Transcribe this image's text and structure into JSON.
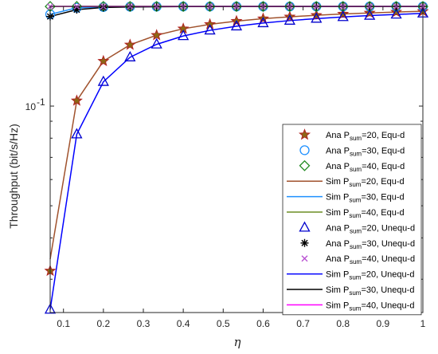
{
  "chart_data": {
    "type": "line",
    "xlabel": "η",
    "ylabel": "Throughput (bit/s/Hz)",
    "xlim": [
      0.0667,
      1.0
    ],
    "ylim": [
      0.0238,
      0.2
    ],
    "yscale": "log",
    "xticks": [
      "0.1",
      "0.2",
      "0.3",
      "0.4",
      "0.5",
      "0.6",
      "0.7",
      "0.8",
      "0.9",
      "1"
    ],
    "xtick_values": [
      0.1,
      0.2,
      0.3,
      0.4,
      0.5,
      0.6,
      0.7,
      0.8,
      0.9,
      1.0
    ],
    "ytick_label": {
      "base": "10",
      "exp": "-1",
      "value": 0.1
    },
    "x": [
      0.0667,
      0.1333,
      0.2,
      0.2667,
      0.3333,
      0.4,
      0.4667,
      0.5333,
      0.6,
      0.6667,
      0.7333,
      0.8,
      0.8667,
      0.9333,
      1.0
    ],
    "legend_position": "bottom-right",
    "series": [
      {
        "name": "Ana P_sum=20, Equ-d",
        "kind": "marker",
        "marker": "star",
        "color": "#B22222",
        "fill": "#8B6914",
        "values": [
          0.0318,
          0.1038,
          0.1367,
          0.1531,
          0.1637,
          0.1712,
          0.1765,
          0.1805,
          0.1836,
          0.186,
          0.188,
          0.1897,
          0.1911,
          0.1923,
          0.1933
        ]
      },
      {
        "name": "Ana P_sum=30, Equ-d",
        "kind": "marker",
        "marker": "circle",
        "color": "#1E90FF",
        "values": [
          0.1892,
          0.1981,
          0.1991,
          0.1995,
          0.1997,
          0.1998,
          0.1998,
          0.1999,
          0.1999,
          0.1999,
          0.1999,
          0.1999,
          0.1999,
          0.1999,
          0.1999
        ]
      },
      {
        "name": "Ana P_sum=40, Equ-d",
        "kind": "marker",
        "marker": "diamond",
        "color": "#228B22",
        "values": [
          0.1999,
          0.1999,
          0.1999,
          0.1999,
          0.1999,
          0.1999,
          0.1999,
          0.1999,
          0.1999,
          0.1999,
          0.1999,
          0.1999,
          0.1999,
          0.1999,
          0.1999
        ]
      },
      {
        "name": "Sim P_sum=20, Equ-d",
        "kind": "line",
        "color": "#A0522D",
        "values": [
          0.0345,
          0.1038,
          0.1367,
          0.1531,
          0.1637,
          0.1712,
          0.1765,
          0.1805,
          0.1836,
          0.186,
          0.188,
          0.1897,
          0.1911,
          0.1923,
          0.1933
        ]
      },
      {
        "name": "Sim P_sum=30, Equ-d",
        "kind": "line",
        "color": "#1E90FF",
        "values": [
          0.1892,
          0.1981,
          0.1991,
          0.1995,
          0.1997,
          0.1998,
          0.1998,
          0.1999,
          0.1999,
          0.1999,
          0.1999,
          0.1999,
          0.1999,
          0.1999,
          0.1999
        ]
      },
      {
        "name": "Sim P_sum=40, Equ-d",
        "kind": "line",
        "color": "#6B8E23",
        "values": [
          0.1999,
          0.1999,
          0.1999,
          0.1999,
          0.1999,
          0.1999,
          0.1999,
          0.1999,
          0.1999,
          0.1999,
          0.1999,
          0.1999,
          0.1999,
          0.1999,
          0.1999
        ]
      },
      {
        "name": "Ana P_sum=20, Unequ-d",
        "kind": "marker",
        "marker": "triangle",
        "color": "#0000CD",
        "values": [
          0.0243,
          0.0822,
          0.1184,
          0.1404,
          0.1536,
          0.1628,
          0.1693,
          0.1742,
          0.1781,
          0.1812,
          0.1837,
          0.1858,
          0.1876,
          0.1891,
          0.1905
        ]
      },
      {
        "name": "Ana P_sum=30, Unequ-d",
        "kind": "marker",
        "marker": "asterisk",
        "color": "#000000",
        "values": [
          0.1864,
          0.1955,
          0.1985,
          0.1992,
          0.1995,
          0.1997,
          0.1998,
          0.1998,
          0.1999,
          0.1999,
          0.1999,
          0.1999,
          0.1999,
          0.1999,
          0.1999
        ]
      },
      {
        "name": "Ana P_sum=40, Unequ-d",
        "kind": "marker",
        "marker": "cross",
        "color": "#BA55D3",
        "values": [
          0.1999,
          0.1999,
          0.1999,
          0.1999,
          0.1999,
          0.1999,
          0.1999,
          0.1999,
          0.1999,
          0.1999,
          0.1999,
          0.1999,
          0.1999,
          0.1999,
          0.1999
        ]
      },
      {
        "name": "Sim P_sum=20, Unequ-d",
        "kind": "line",
        "color": "#0000FF",
        "values": [
          0.0243,
          0.0822,
          0.1184,
          0.1404,
          0.1536,
          0.1628,
          0.1693,
          0.1742,
          0.1781,
          0.1812,
          0.1837,
          0.1858,
          0.1876,
          0.1891,
          0.1905
        ]
      },
      {
        "name": "Sim P_sum=30, Unequ-d",
        "kind": "line",
        "color": "#000000",
        "values": [
          0.1864,
          0.1955,
          0.1985,
          0.1992,
          0.1995,
          0.1997,
          0.1998,
          0.1998,
          0.1999,
          0.1999,
          0.1999,
          0.1999,
          0.1999,
          0.1999,
          0.1999
        ]
      },
      {
        "name": "Sim P_sum=40, Unequ-d",
        "kind": "line",
        "color": "#FF00FF",
        "values": [
          0.2,
          0.2,
          0.2,
          0.2,
          0.2,
          0.2,
          0.2,
          0.2,
          0.2,
          0.2,
          0.2,
          0.2,
          0.2,
          0.2,
          0.2
        ]
      }
    ],
    "legend": [
      {
        "prefix": "Ana P",
        "sub": "sum",
        "suffix": "=20, Equ-d"
      },
      {
        "prefix": "Ana P",
        "sub": "sum",
        "suffix": "=30, Equ-d"
      },
      {
        "prefix": "Ana P",
        "sub": "sum",
        "suffix": "=40, Equ-d"
      },
      {
        "prefix": "Sim P",
        "sub": "sum",
        "suffix": "=20, Equ-d"
      },
      {
        "prefix": "Sim P",
        "sub": "sum",
        "suffix": "=30, Equ-d"
      },
      {
        "prefix": "Sim P",
        "sub": "sum",
        "suffix": "=40, Equ-d"
      },
      {
        "prefix": "Ana P",
        "sub": "sum",
        "suffix": "=20, Unequ-d"
      },
      {
        "prefix": "Ana P",
        "sub": "sum",
        "suffix": "=30, Unequ-d"
      },
      {
        "prefix": "Ana P",
        "sub": "sum",
        "suffix": "=40, Unequ-d"
      },
      {
        "prefix": "Sim P",
        "sub": "sum",
        "suffix": "=20, Unequ-d"
      },
      {
        "prefix": "Sim P",
        "sub": "sum",
        "suffix": "=30, Unequ-d"
      },
      {
        "prefix": "Sim P",
        "sub": "sum",
        "suffix": "=40, Unequ-d"
      }
    ]
  }
}
